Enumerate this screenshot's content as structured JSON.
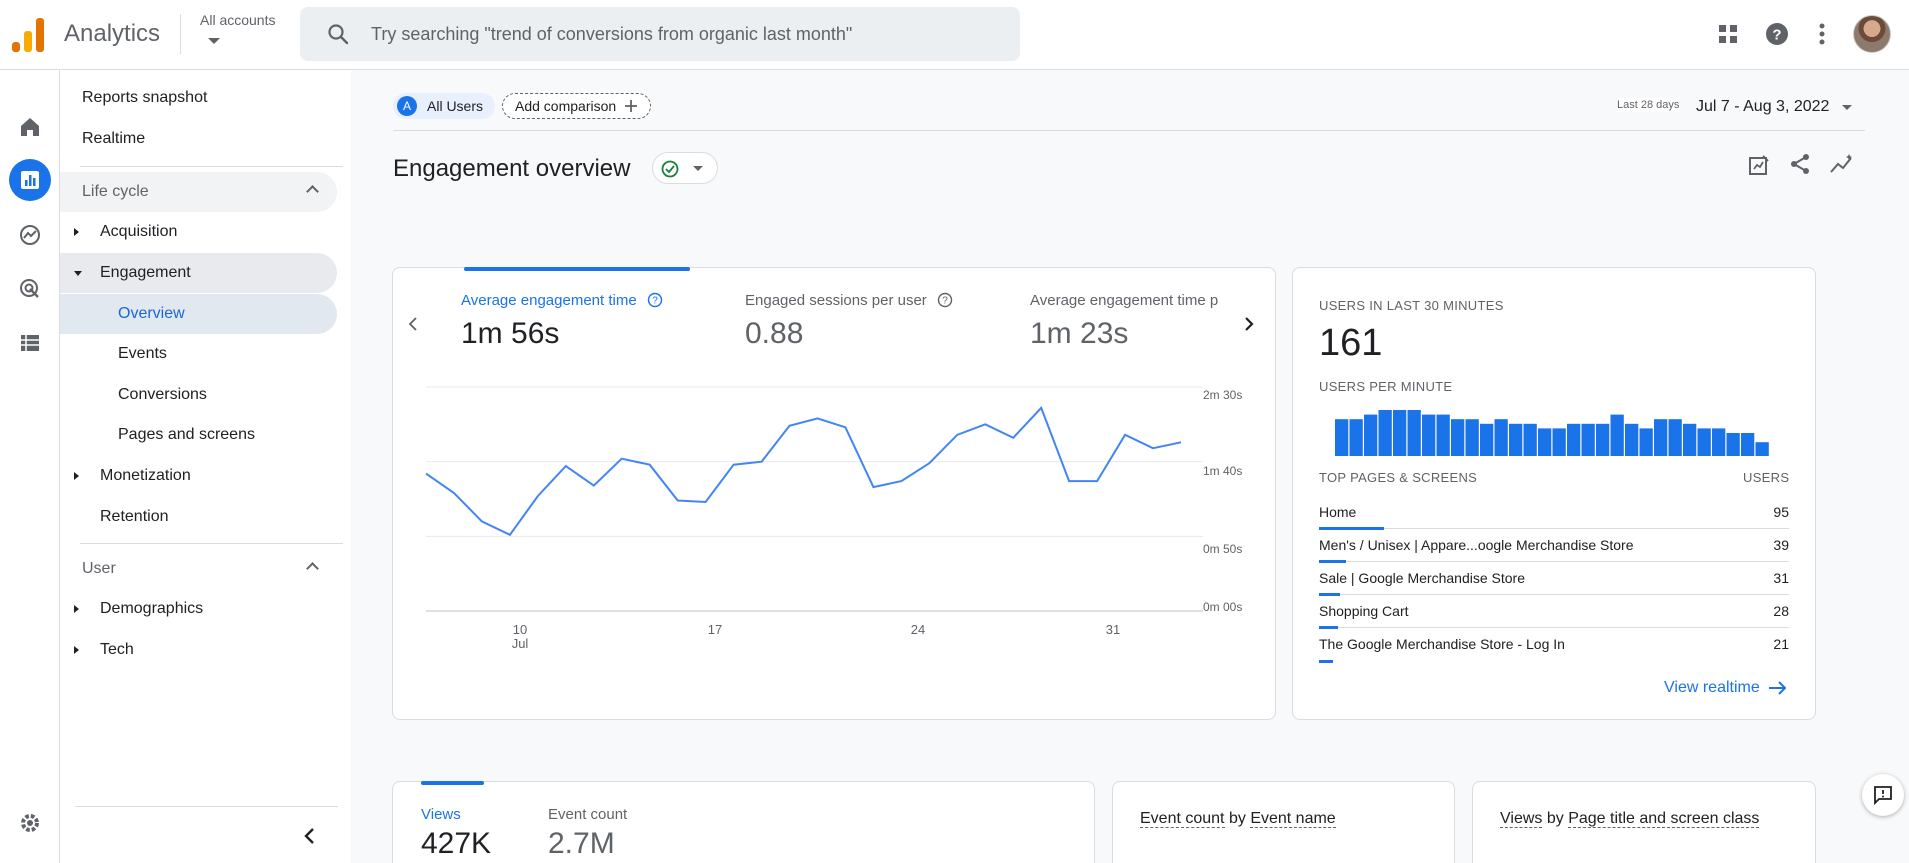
{
  "topbar": {
    "app_title": "Analytics",
    "account_selector": "All accounts",
    "search_placeholder": "Try searching \"trend of conversions from organic last month\""
  },
  "sidenav": {
    "items": [
      {
        "label": "Reports snapshot"
      },
      {
        "label": "Realtime"
      },
      {
        "label": "Life cycle"
      },
      {
        "label": "Acquisition"
      },
      {
        "label": "Engagement"
      },
      {
        "label": "Overview"
      },
      {
        "label": "Events"
      },
      {
        "label": "Conversions"
      },
      {
        "label": "Pages and screens"
      },
      {
        "label": "Monetization"
      },
      {
        "label": "Retention"
      },
      {
        "label": "User"
      },
      {
        "label": "Demographics"
      },
      {
        "label": "Tech"
      }
    ]
  },
  "header": {
    "comparison_badge": "A",
    "comparison_user": "All Users",
    "add_comparison": "Add comparison",
    "date_label": "Last 28 days",
    "date_range": "Jul 7 - Aug 3, 2022",
    "page_title": "Engagement overview"
  },
  "engagement_card": {
    "tabs": [
      {
        "label": "Average engagement time",
        "value": "1m 56s"
      },
      {
        "label": "Engaged sessions per user",
        "value": "0.88"
      },
      {
        "label": "Average engagement time p",
        "value": "1m 23s"
      }
    ],
    "y_ticks": [
      "2m 30s",
      "1m 40s",
      "0m 50s",
      "0m 00s"
    ],
    "x_ticks": [
      "10",
      "17",
      "24",
      "31"
    ],
    "x_month": "Jul"
  },
  "chart_data": {
    "type": "line",
    "x": [
      "Jul 7",
      "Jul 8",
      "Jul 9",
      "Jul 10",
      "Jul 11",
      "Jul 12",
      "Jul 13",
      "Jul 14",
      "Jul 15",
      "Jul 16",
      "Jul 17",
      "Jul 18",
      "Jul 19",
      "Jul 20",
      "Jul 21",
      "Jul 22",
      "Jul 23",
      "Jul 24",
      "Jul 25",
      "Jul 26",
      "Jul 27",
      "Jul 28",
      "Jul 29",
      "Jul 30",
      "Jul 31",
      "Aug 1",
      "Aug 2",
      "Aug 3"
    ],
    "series": [
      {
        "values": [
          92,
          79,
          60,
          51,
          77,
          97,
          84,
          102,
          98,
          74,
          73,
          98,
          100,
          124,
          129,
          123,
          83,
          87,
          99,
          118,
          125,
          116,
          136,
          87,
          87,
          118,
          109,
          113
        ]
      }
    ],
    "y_unit": "seconds",
    "ylim": [
      0,
      150
    ],
    "grid": true,
    "color": "#4285f4"
  },
  "realtime": {
    "title": "USERS IN LAST 30 MINUTES",
    "count": "161",
    "per_minute_label": "USERS PER MINUTE",
    "per_minute_values": [
      8,
      8,
      9,
      10,
      10,
      10,
      9,
      9,
      8,
      8,
      7,
      8,
      7,
      7,
      6,
      6,
      7,
      7,
      7,
      9,
      7,
      6,
      8,
      8,
      7,
      6,
      6,
      5,
      5,
      3
    ],
    "bar_color": "#1a73e8",
    "table_header": "TOP PAGES & SCREENS",
    "table_header_value": "USERS",
    "rows": [
      {
        "name": "Home",
        "users": "95"
      },
      {
        "name": "Men's / Unisex | Appare...oogle Merchandise Store",
        "users": "39"
      },
      {
        "name": "Sale | Google Merchandise Store",
        "users": "31"
      },
      {
        "name": "Shopping Cart",
        "users": "28"
      },
      {
        "name": "The Google Merchandise Store - Log In",
        "users": "21"
      }
    ],
    "view_link": "View realtime"
  },
  "bottom_cards": {
    "views_label": "Views",
    "views_value": "427K",
    "event_count_label": "Event count",
    "event_count_value": "2.7M",
    "card2_part1": "Event count",
    "card2_by": "by",
    "card2_part2": "Event name",
    "card3_part1": "Views",
    "card3_by": "by",
    "card3_part2": "Page title and screen class"
  },
  "colors": {
    "accent": "#1a73e8",
    "success": "#188038"
  }
}
